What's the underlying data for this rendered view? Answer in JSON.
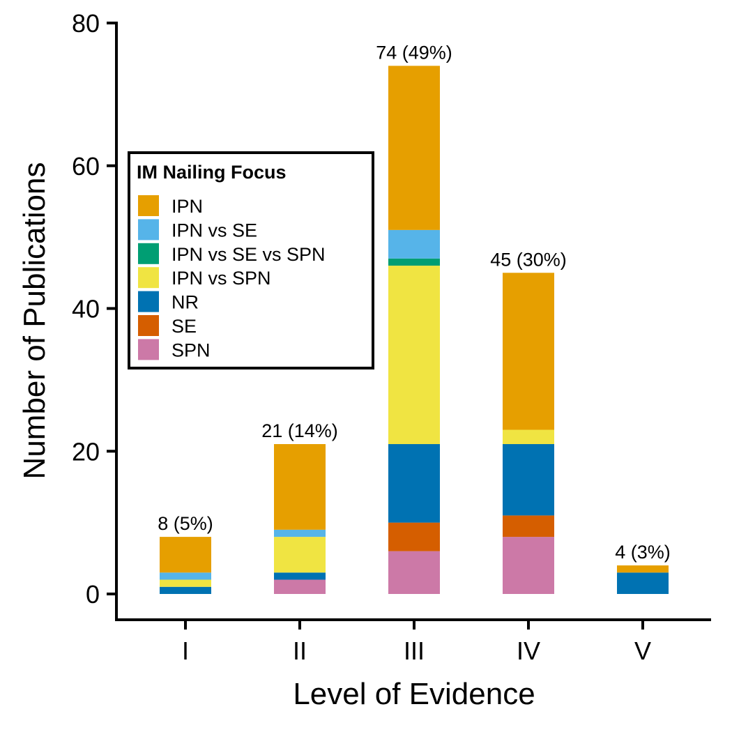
{
  "chart_data": {
    "type": "bar",
    "stacked": true,
    "categories": [
      "I",
      "II",
      "III",
      "IV",
      "V"
    ],
    "xlabel": "Level of Evidence",
    "ylabel": "Number of Publications",
    "ylim": [
      0,
      80
    ],
    "yticks": [
      0,
      20,
      40,
      60,
      80
    ],
    "grid": false,
    "legend": {
      "title": "IM Nailing Focus",
      "placement": "left-middle"
    },
    "series": [
      {
        "name": "SPN",
        "color": "#CC79A7",
        "values": [
          0,
          2,
          6,
          8,
          0
        ]
      },
      {
        "name": "SE",
        "color": "#D55E00",
        "values": [
          0,
          0,
          4,
          3,
          0
        ]
      },
      {
        "name": "NR",
        "color": "#0072B2",
        "values": [
          1,
          1,
          11,
          10,
          3
        ]
      },
      {
        "name": "IPN vs SPN",
        "color": "#F0E442",
        "values": [
          1,
          5,
          25,
          2,
          0
        ]
      },
      {
        "name": "IPN vs SE vs SPN",
        "color": "#009E73",
        "values": [
          0,
          0,
          1,
          0,
          0
        ]
      },
      {
        "name": "IPN vs SE",
        "color": "#56B4E9",
        "values": [
          1,
          1,
          4,
          0,
          0
        ]
      },
      {
        "name": "IPN",
        "color": "#E69F00",
        "values": [
          5,
          12,
          23,
          22,
          1
        ]
      }
    ],
    "legend_order": [
      "IPN",
      "IPN vs SE",
      "IPN vs SE vs SPN",
      "IPN vs SPN",
      "NR",
      "SE",
      "SPN"
    ],
    "totals": [
      8,
      21,
      74,
      45,
      4
    ],
    "bar_labels": [
      "8 (5%)",
      "21 (14%)",
      "74 (49%)",
      "45 (30%)",
      "4 (3%)"
    ]
  }
}
